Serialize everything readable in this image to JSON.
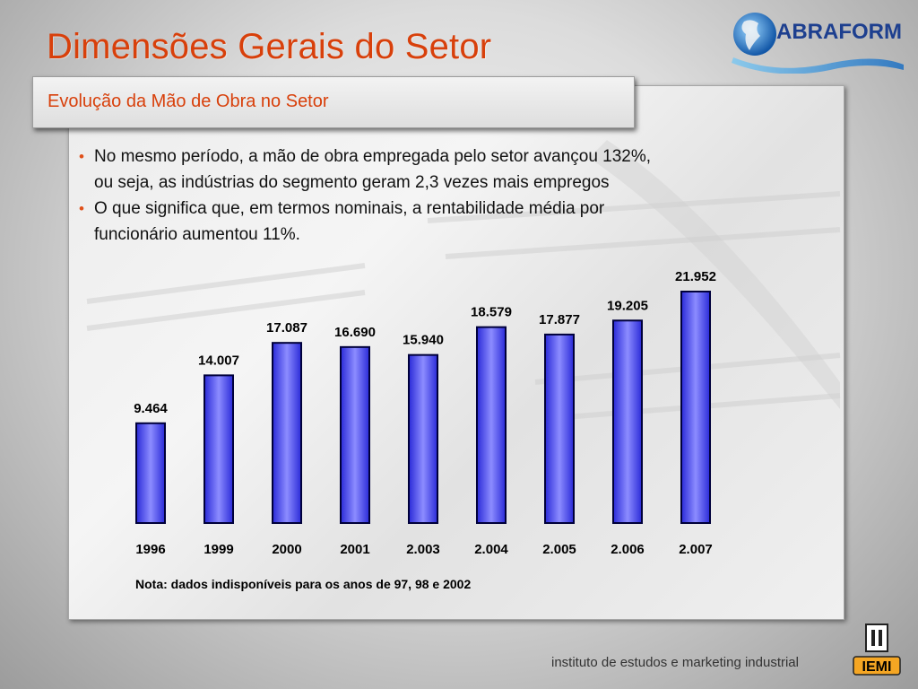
{
  "slide": {
    "title": "Dimensões Gerais do Setor",
    "subtitle": "Evolução da Mão de Obra no Setor",
    "bullets": [
      {
        "line1": "No mesmo período, a mão de obra empregada pelo setor avançou 132%,",
        "line2": "ou seja, as indústrias do segmento geram 2,3 vezes mais empregos"
      },
      {
        "line1": "O que significa que, em termos nominais, a rentabilidade média por",
        "line2": "funcionário aumentou 11%."
      }
    ],
    "note": "Nota: dados indisponíveis para os anos de 97, 98 e 2002",
    "footer": "instituto de estudos e marketing industrial",
    "logo_text": "ABRAFORM",
    "iemi_logo_text": "IEMI"
  },
  "chart_data": {
    "type": "bar",
    "categories": [
      "1996",
      "1999",
      "2000",
      "2001",
      "2.003",
      "2.004",
      "2.005",
      "2.006",
      "2.007"
    ],
    "values": [
      9464,
      14007,
      17087,
      16690,
      15940,
      18579,
      17877,
      19205,
      21952
    ],
    "value_labels": [
      "9.464",
      "14.007",
      "17.087",
      "16.690",
      "15.940",
      "18.579",
      "17.877",
      "19.205",
      "21.952"
    ],
    "ylim": [
      0,
      22500
    ],
    "grid": false,
    "legend": "none",
    "colors": {
      "bar": "#6464f4",
      "bar_edge": "#00003a"
    }
  },
  "colors": {
    "title": "#d8400b",
    "bullet": "#e0501a"
  }
}
